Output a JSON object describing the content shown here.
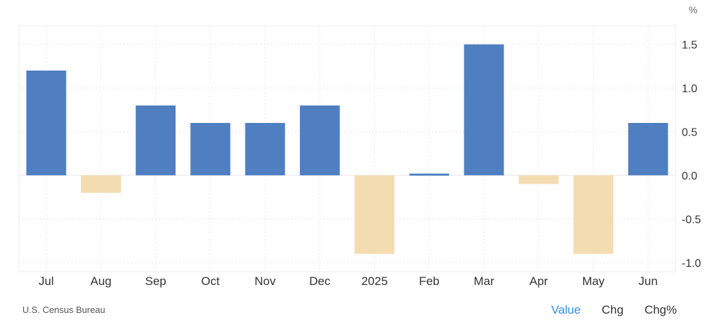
{
  "source_label": "U.S. Census Bureau",
  "view_tabs": [
    {
      "label": "Value",
      "active": true
    },
    {
      "label": "Chg",
      "active": false
    },
    {
      "label": "Chg%",
      "active": false
    }
  ],
  "colors": {
    "positive": "#4f7fc1",
    "negative": "#f4dcb1",
    "grid": "#e6e6e6",
    "active_tab": "#2f8fe0"
  },
  "chart_data": {
    "type": "bar",
    "unit": "%",
    "categories": [
      "Jul",
      "Aug",
      "Sep",
      "Oct",
      "Nov",
      "Dec",
      "2025",
      "Feb",
      "Mar",
      "Apr",
      "May",
      "Jun"
    ],
    "values": [
      1.2,
      -0.2,
      0.8,
      0.6,
      0.6,
      0.8,
      -0.9,
      0.02,
      1.5,
      -0.1,
      -0.9,
      0.6
    ],
    "ylim": [
      -1.1,
      1.7
    ],
    "yticks": [
      1.5,
      1.0,
      0.5,
      0.0,
      -0.5,
      -1.0
    ],
    "ytick_labels": [
      "1.5",
      "1.0",
      "0.5",
      "0.0",
      "-0.5",
      "-1.0"
    ],
    "axis_position": "right",
    "grid": true,
    "title": "",
    "xlabel": "",
    "ylabel": ""
  }
}
